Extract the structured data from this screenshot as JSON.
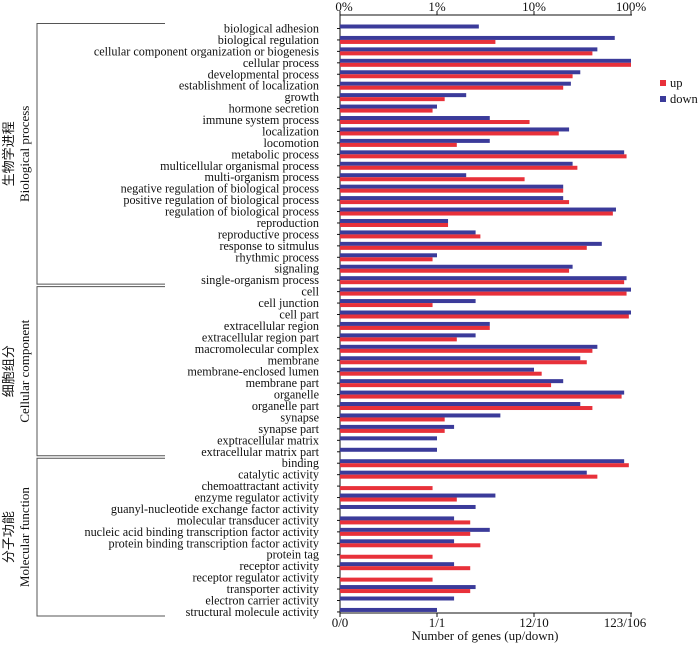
{
  "chart_data": {
    "type": "bar",
    "orientation": "horizontal",
    "scale": "log",
    "top_axis_ticks": [
      "0%",
      "1%",
      "10%",
      "100%"
    ],
    "bottom_axis_ticks": [
      "0/0",
      "1/1",
      "12/10",
      "123/106"
    ],
    "xlabel": "Number of genes (up/down)",
    "colors": {
      "up": "#e8313a",
      "down": "#3b3b9a"
    },
    "legend": {
      "position": "right",
      "up_label": "up",
      "down_label": "down"
    },
    "groups": [
      {
        "id": "bp",
        "label_cn": "生物学进程",
        "label_en": "Biological process",
        "first": 0,
        "last": 22
      },
      {
        "id": "cc",
        "label_cn": "细胞组分",
        "label_en": "Cellular component",
        "first": 23,
        "last": 37
      },
      {
        "id": "mf",
        "label_cn": "分子功能",
        "label_en": "Molecular function",
        "first": 38,
        "last": 51
      }
    ],
    "categories": [
      "biological adhesion",
      "biological regulation",
      "cellular component organization or biogenesis",
      "cellular process",
      "developmental process",
      "establishment of localization",
      "growth",
      "hormone secretion",
      "immune system process",
      "localization",
      "locomotion",
      "metabolic process",
      "multicellular organismal process",
      "multi-organism process",
      "negative regulation of biological process",
      "positive regulation of biological process",
      "regulation of biological process",
      "reproduction",
      "reproductive process",
      "response to sitmulus",
      "rhythmic process",
      "signaling",
      "single-organism process",
      "cell",
      "cell junction",
      "cell part",
      "extracellular region",
      "extracellular region part",
      "macromolecular complex",
      "membrane",
      "membrane-enclosed lumen",
      "membrane part",
      "organelle",
      "organelle part",
      "synapse",
      "synapse part",
      "exptracellular matrix",
      "extracellular matrix part",
      "binding",
      "catalytic activity",
      "chemoattractant activity",
      "enzyme regulator activity",
      "guanyl-nucleotide exchange factor activity",
      "molecular transducer activity",
      "nucleic acid binding transcription factor activity",
      "protein binding transcription factor activity",
      "protein tag",
      "receptor activity",
      "receptor regulator activity",
      "transporter activity",
      "electron carrier activity",
      "structural molecule activity"
    ],
    "series": [
      {
        "name": "up",
        "percent": [
          0,
          4,
          40,
          100,
          25,
          20,
          1.2,
          0.9,
          9,
          18,
          1.6,
          90,
          28,
          8,
          20,
          23,
          65,
          1.3,
          2.8,
          35,
          0.9,
          23,
          85,
          90,
          0.9,
          95,
          3.5,
          1.6,
          40,
          35,
          12,
          15,
          80,
          40,
          1.2,
          1.2,
          0,
          0,
          95,
          45,
          0.9,
          1.6,
          0,
          2.2,
          2.2,
          2.8,
          0.9,
          2.2,
          0.9,
          2.2,
          0,
          0
        ]
      },
      {
        "name": "down",
        "percent": [
          2.7,
          68,
          45,
          100,
          30,
          24,
          2,
          1,
          3.5,
          23,
          3.5,
          85,
          25,
          2,
          20,
          20,
          70,
          1.3,
          2.5,
          50,
          1,
          25,
          90,
          100,
          2.5,
          100,
          3.5,
          2.5,
          45,
          30,
          10,
          20,
          85,
          30,
          4.5,
          1.5,
          1,
          1,
          85,
          35,
          0,
          4,
          2.5,
          1.5,
          3.5,
          1.5,
          0,
          1.5,
          0,
          2.5,
          1.5,
          1
        ]
      }
    ]
  }
}
